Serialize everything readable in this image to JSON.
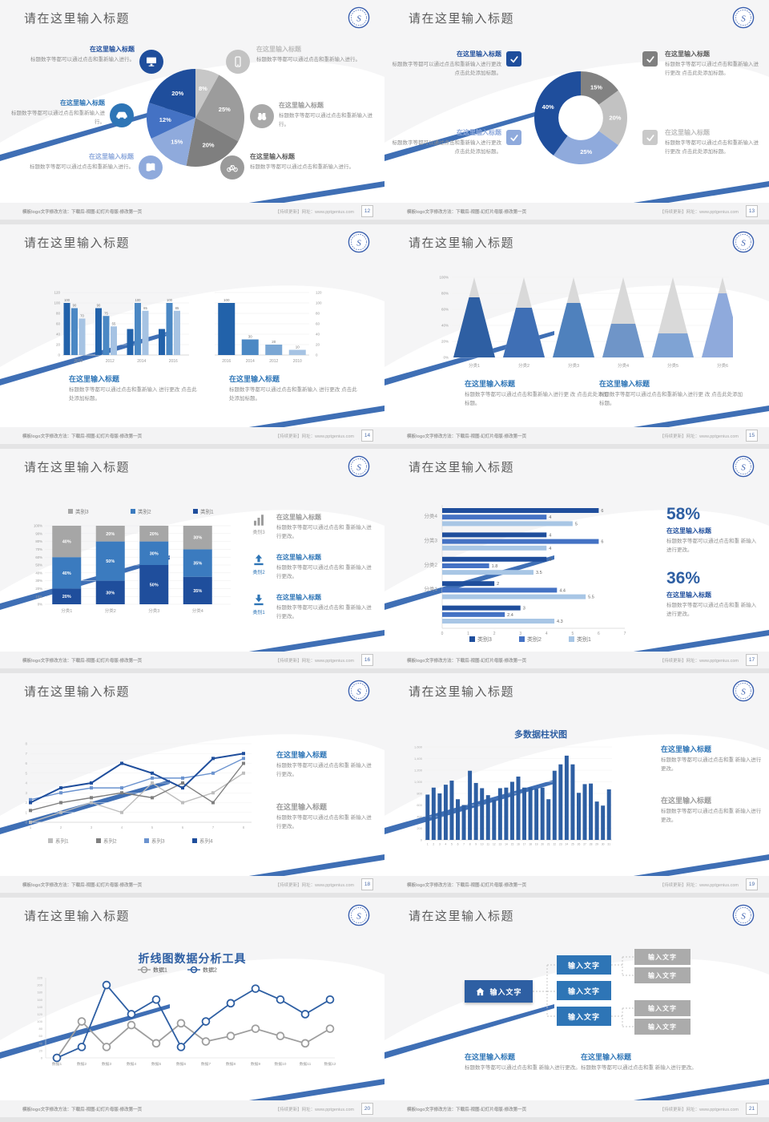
{
  "common": {
    "slide_title": "请在这里输入标题",
    "logo_letter": "S",
    "footer_left": "模板logo文字修改方法：下载后-视图-幻灯片母版-修改第一页",
    "footer_right": "【持续更新】网址：www.pptgenius.com",
    "colors": {
      "accent_dark_blue": "#1f4e9c",
      "accent_mid_blue": "#2e75b6",
      "accent_light_blue": "#8faadc",
      "swoosh_blue": "#3f6fb5",
      "title_gray": "#5b5b5b",
      "body_gray": "#8f8f8f"
    }
  },
  "slides": {
    "p12": {
      "page": "12",
      "callouts": [
        {
          "title": "在这里输入标题",
          "body": "标题数字等都可以通过点击和重新输入进行。"
        },
        {
          "title": "在这里输入标题",
          "body": "标题数字等都可以通过点击和重新输入进行。"
        },
        {
          "title": "在这里输入标题",
          "body": "标题数字等都可以通过点击和重新输入进行。"
        },
        {
          "title": "在这里输入标题",
          "body": "标题数字等都可以通过点击和重新输入进行。"
        },
        {
          "title": "在这里输入标题",
          "body": "标题数字等都可以通过点击和重新输入进行。"
        },
        {
          "title": "在这里输入标题",
          "body": "标题数字等都可以通过点击和重新输入进行。"
        }
      ]
    },
    "p13": {
      "page": "13",
      "callouts": [
        {
          "title": "在这里输入标题",
          "body": "标题数字等都可以通过点击和重新输入进行更改 点击此处添加标题。"
        },
        {
          "title": "在这里输入标题",
          "body": "标题数字等都可以通过点击和重新输入进行更改 点击此处添加标题。"
        },
        {
          "title": "在这里输入标题",
          "body": "标题数字等都可以通过点击和重新输入进行更改 点击此处添加标题。"
        },
        {
          "title": "在这里输入标题",
          "body": "标题数字等都可以通过点击和重新输入进行更改 点击此处添加标题。"
        }
      ]
    },
    "p14": {
      "page": "14",
      "blocks": [
        {
          "title": "在这里输入标题",
          "body": "标题数字等都可以通过点击和重新输入 进行更改 点击此处添加标题。"
        },
        {
          "title": "在这里输入标题",
          "body": "标题数字等都可以通过点击和重新输入 进行更改 点击此处添加标题。"
        }
      ]
    },
    "p15": {
      "page": "15",
      "blocks": [
        {
          "title": "在这里输入标题",
          "body": "标题数字等都可以通过点击和重新输入进行更 改 点击此处添加标题。"
        },
        {
          "title": "在这里输入标题",
          "body": "标题数字等都可以通过点击和重新输入进行更 改 点击此处添加标题。"
        }
      ]
    },
    "p16": {
      "page": "16",
      "items": [
        {
          "tag": "类别3",
          "title": "在这里输入标题",
          "body": "标题数字等都可以通过点击和 重新输入进行更改。"
        },
        {
          "tag": "类别2",
          "title": "在这里输入标题",
          "body": "标题数字等都可以通过点击和 重新输入进行更改。"
        },
        {
          "tag": "类别1",
          "title": "在这里输入标题",
          "body": "标题数字等都可以通过点击和 重新输入进行更改。"
        }
      ]
    },
    "p17": {
      "page": "17",
      "stats": [
        {
          "value": "58%",
          "title": "在这里输入标题",
          "body": "标题数字等都可以通过点击和重 新输入进行更改。"
        },
        {
          "value": "36%",
          "title": "在这里输入标题",
          "body": "标题数字等都可以通过点击和重 新输入进行更改。"
        }
      ]
    },
    "p18": {
      "page": "18",
      "blocks": [
        {
          "title": "在这里输入标题",
          "body": "标题数字等都可以通过点击和重 新输入进行更改。"
        },
        {
          "title": "在这里输入标题",
          "body": "标题数字等都可以通过点击和重 新输入进行更改。"
        }
      ]
    },
    "p19": {
      "page": "19",
      "blocks": [
        {
          "title": "在这里输入标题",
          "body": "标题数字等都可以通过点击和重 新输入进行更改。"
        },
        {
          "title": "在这里输入标题",
          "body": "标题数字等都可以通过点击和重 新输入进行更改。"
        }
      ]
    },
    "p20": {
      "page": "20"
    },
    "p21": {
      "page": "21",
      "blocks": [
        {
          "title": "在这里输入标题",
          "body": "标题数字等都可以通过点击和重 新输入进行更改。"
        },
        {
          "title": "在这里输入标题",
          "body": "标题数字等都可以通过点击和重 新输入进行更改。"
        }
      ]
    }
  },
  "chart_data": [
    {
      "type": "pie",
      "values": [
        8,
        25,
        20,
        15,
        12,
        20
      ],
      "labels": [
        "8%",
        "25%",
        "20%",
        "15%",
        "12%",
        "20%"
      ],
      "colors": [
        "#c7c7c7",
        "#9c9c9c",
        "#7f7f7f",
        "#8faadc",
        "#4472c4",
        "#1f4e9c"
      ]
    },
    {
      "type": "donut",
      "values": [
        15,
        20,
        25,
        40
      ],
      "labels": [
        "15%",
        "20%",
        "25%",
        "40%"
      ],
      "colors": [
        "#828282",
        "#c2c2c2",
        "#8faadc",
        "#1f4e9c"
      ],
      "inner_ratio": 0.48
    },
    {
      "type": "bar-grouped",
      "categories": [
        "2010",
        "2012",
        "2014",
        "2016"
      ],
      "series": [
        {
          "color": "#2262aa",
          "values": [
            100,
            90,
            50,
            50
          ],
          "labels": [
            "100",
            "90",
            "",
            ""
          ]
        },
        {
          "color": "#4b88c4",
          "values": [
            90,
            75,
            100,
            100
          ],
          "labels": [
            "90",
            "75",
            "100",
            "100"
          ]
        },
        {
          "color": "#a6c3e3",
          "values": [
            70,
            55,
            85,
            85
          ],
          "labels": [
            "70",
            "55",
            "85",
            "85"
          ]
        }
      ],
      "ylim": [
        0,
        120
      ],
      "yticks": [
        "0",
        "20",
        "40",
        "60",
        "80",
        "100",
        "120"
      ]
    },
    {
      "type": "bar",
      "categories": [
        "2016",
        "2014",
        "2012",
        "2010"
      ],
      "values": [
        100,
        30,
        20,
        10
      ],
      "labels": [
        "100",
        "30",
        "20",
        "10"
      ],
      "colors": [
        "#2262aa",
        "#4b88c4",
        "#7ba7d4",
        "#a6c3e3"
      ],
      "ylim": [
        0,
        120
      ],
      "yticks": [
        "0",
        "20",
        "40",
        "60",
        "80",
        "100",
        "120"
      ],
      "yaxis": "right"
    },
    {
      "type": "pyramid",
      "categories": [
        "分类1",
        "分类2",
        "分类3",
        "分类4",
        "分类5",
        "分类6"
      ],
      "fill_pct": [
        75,
        62,
        68,
        42,
        30,
        80
      ],
      "colors": [
        "#2e5fa3",
        "#3f6fb5",
        "#4f81bd",
        "#6f95c8",
        "#7fa3d4",
        "#8faadc"
      ],
      "top_color": "#d9d9d9",
      "yticks": [
        "0%",
        "20%",
        "40%",
        "60%",
        "80%",
        "100%"
      ]
    },
    {
      "type": "bar-stacked",
      "categories": [
        "分类1",
        "分类2",
        "分类3",
        "分类4"
      ],
      "series": [
        {
          "name": "类别1",
          "color": "#1f4e9c",
          "values": [
            20,
            30,
            50,
            35
          ]
        },
        {
          "name": "类别2",
          "color": "#3b7bbf",
          "values": [
            40,
            50,
            30,
            35
          ]
        },
        {
          "name": "类别3",
          "color": "#a6a6a6",
          "values": [
            40,
            20,
            20,
            30
          ]
        }
      ],
      "legend": [
        "类别3",
        "类别2",
        "类别1"
      ],
      "legend_colors": [
        "#a6a6a6",
        "#3b7bbf",
        "#1f4e9c"
      ],
      "yticks": [
        "0%",
        "10%",
        "20%",
        "30%",
        "40%",
        "50%",
        "60%",
        "70%",
        "80%",
        "90%",
        "100%"
      ]
    },
    {
      "type": "bar-horizontal",
      "group_labels": [
        "分类4",
        "分类3",
        "分类2",
        "分类1",
        ""
      ],
      "series": [
        {
          "name": "类别3",
          "color": "#1f4e9c",
          "values": [
            6,
            4,
            4,
            2,
            3
          ]
        },
        {
          "name": "类别2",
          "color": "#4472c4",
          "values": [
            4,
            6,
            1.8,
            4.4,
            2.4
          ]
        },
        {
          "name": "类别1",
          "color": "#a8c6e5",
          "values": [
            5,
            4,
            3.5,
            5.5,
            4.3
          ]
        }
      ],
      "xticks": [
        "0",
        "1",
        "2",
        "3",
        "4",
        "5",
        "6",
        "7"
      ],
      "xlim": [
        0,
        7
      ],
      "legend": [
        "类别3",
        "类别2",
        "类别1"
      ]
    },
    {
      "type": "line",
      "x": [
        1,
        2,
        3,
        4,
        5,
        6,
        7,
        8
      ],
      "ylim": [
        0,
        8
      ],
      "series": [
        {
          "name": "系列1",
          "color": "#bdbdbd",
          "values": [
            0,
            1,
            2,
            1,
            4,
            2,
            3,
            5
          ]
        },
        {
          "name": "系列2",
          "color": "#7f7f7f",
          "values": [
            1.2,
            2,
            2.5,
            3,
            2.5,
            4,
            2,
            6
          ]
        },
        {
          "name": "系列3",
          "color": "#6b93cf",
          "values": [
            2.3,
            3,
            3.5,
            3.5,
            4.5,
            4.5,
            5,
            6.5
          ]
        },
        {
          "name": "系列4",
          "color": "#1f4e9c",
          "values": [
            2,
            3.5,
            4,
            6,
            5,
            3.5,
            6.5,
            7
          ]
        }
      ]
    },
    {
      "type": "column",
      "title": "多数据柱状图",
      "categories": [
        "1",
        "2",
        "3",
        "4",
        "5",
        "6",
        "7",
        "8",
        "9",
        "10",
        "11",
        "12",
        "13",
        "14",
        "15",
        "16",
        "17",
        "18",
        "19",
        "20",
        "21",
        "22",
        "23",
        "24",
        "25",
        "26",
        "27",
        "28",
        "29",
        "30",
        "31"
      ],
      "values": [
        780,
        900,
        800,
        950,
        1020,
        700,
        600,
        1190,
        980,
        890,
        770,
        690,
        890,
        900,
        1000,
        1090,
        900,
        900,
        880,
        900,
        700,
        1190,
        1300,
        1450,
        1300,
        810,
        960,
        970,
        660,
        590,
        870
      ],
      "color": "#2e5fa3",
      "ylim": [
        0,
        1600
      ],
      "yticks": [
        "0",
        "200",
        "400",
        "600",
        "800",
        "1,000",
        "1,200",
        "1,400",
        "1,600"
      ]
    },
    {
      "type": "line",
      "title": "折线图数据分析工具",
      "categories": [
        "数据1",
        "数据2",
        "数据3",
        "数据4",
        "数据5",
        "数据6",
        "数据7",
        "数据8",
        "数据9",
        "数据10",
        "数据11",
        "数据12"
      ],
      "ylim": [
        0,
        220
      ],
      "yticks": [
        "0",
        "20",
        "40",
        "60",
        "80",
        "100",
        "120",
        "140",
        "160",
        "180",
        "200",
        "220"
      ],
      "series": [
        {
          "name": "数据1",
          "color": "#9e9e9e",
          "values": [
            0,
            100,
            30,
            90,
            40,
            95,
            45,
            60,
            80,
            60,
            40,
            80
          ]
        },
        {
          "name": "数据2",
          "color": "#2e5fa3",
          "values": [
            0,
            30,
            200,
            120,
            160,
            30,
            100,
            150,
            190,
            160,
            120,
            160
          ]
        }
      ]
    },
    {
      "type": "tree",
      "root": "输入文字",
      "level2": [
        "输入文字",
        "输入文字",
        "输入文字"
      ],
      "level3": [
        "输入文字",
        "输入文字",
        "输入文字",
        "输入文字"
      ]
    }
  ]
}
